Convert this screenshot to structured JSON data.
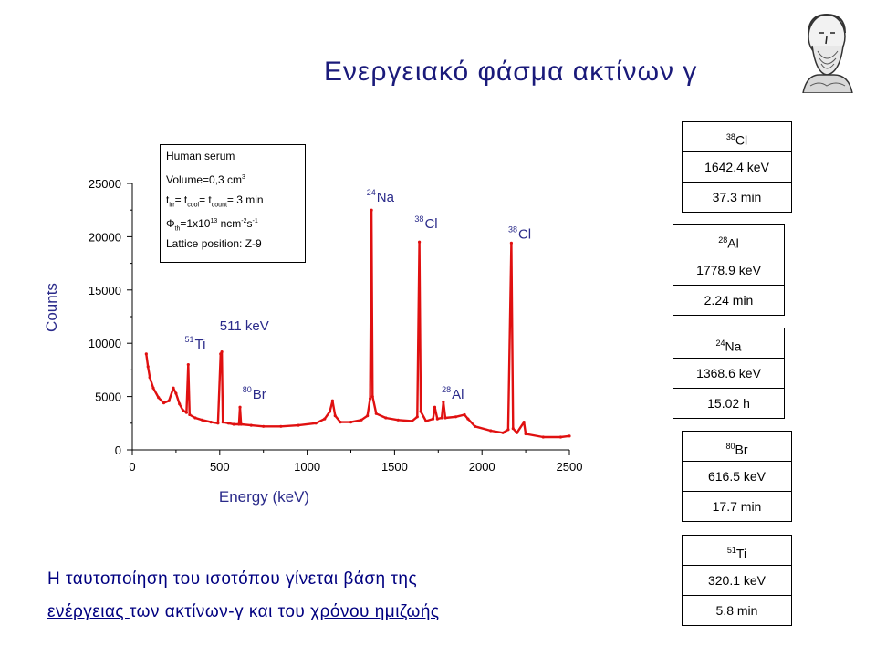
{
  "title": "Ενεργειακό φάσμα ακτίνων γ",
  "info_box": {
    "line1": "Human serum",
    "line2_prefix": "Volume=0,3 cm",
    "line2_sup": "3",
    "line3_a": "t",
    "line3_a_sub": "irr",
    "line3_b": "= t",
    "line3_b_sub": "cool",
    "line3_c": "= t",
    "line3_c_sub": "count",
    "line3_d": "= 3 min",
    "line4_a": "Φ",
    "line4_a_sub": "th",
    "line4_b": "=1x10",
    "line4_b_sup": "13",
    "line4_c": " ncm",
    "line4_c_sup": "-2",
    "line4_d": "s",
    "line4_d_sup": "-1",
    "line5": "Lattice position: Z-9"
  },
  "isotope_boxes": [
    {
      "mass": "38",
      "element": "Cl",
      "energy": "1642.4 keV",
      "half_life": "37.3 min"
    },
    {
      "mass": "28",
      "element": "Al",
      "energy": "1778.9 keV",
      "half_life": "2.24 min"
    },
    {
      "mass": "24",
      "element": "Na",
      "energy": "1368.6 keV",
      "half_life": "15.02 h"
    },
    {
      "mass": "80",
      "element": "Br",
      "energy": "616.5 keV",
      "half_life": "17.7 min"
    },
    {
      "mass": "51",
      "element": "Ti",
      "energy": "320.1 keV",
      "half_life": "5.8 min"
    }
  ],
  "caption": {
    "line1": "Η ταυτοποίηση του ισοτόπου γίνεται βάση της",
    "line2_u1": "ενέργειας ",
    "line2_mid": "των ακτίνων-γ και του ",
    "line2_u2": "χρόνου ημιζωής"
  },
  "chart_data": {
    "type": "line",
    "xlabel": "Energy (keV)",
    "ylabel": "Counts",
    "xlim": [
      0,
      2500
    ],
    "ylim": [
      0,
      25000
    ],
    "xticks": [
      0,
      500,
      1000,
      1500,
      2000,
      2500
    ],
    "yticks": [
      0,
      5000,
      10000,
      15000,
      20000,
      25000
    ],
    "line_color": "#e01010",
    "label_color": "#2a2a8a",
    "series": [
      {
        "values": [
          [
            80,
            9000
          ],
          [
            90,
            7800
          ],
          [
            100,
            6800
          ],
          [
            120,
            5800
          ],
          [
            150,
            4900
          ],
          [
            180,
            4400
          ],
          [
            210,
            4600
          ],
          [
            235,
            5800
          ],
          [
            250,
            5300
          ],
          [
            270,
            4300
          ],
          [
            290,
            3700
          ],
          [
            310,
            3500
          ],
          [
            320,
            8000
          ],
          [
            328,
            3300
          ],
          [
            360,
            3000
          ],
          [
            400,
            2800
          ],
          [
            450,
            2600
          ],
          [
            490,
            2500
          ],
          [
            505,
            9000
          ],
          [
            512,
            9200
          ],
          [
            518,
            2600
          ],
          [
            550,
            2500
          ],
          [
            580,
            2400
          ],
          [
            610,
            2400
          ],
          [
            616,
            4000
          ],
          [
            622,
            2400
          ],
          [
            680,
            2300
          ],
          [
            750,
            2200
          ],
          [
            850,
            2200
          ],
          [
            950,
            2300
          ],
          [
            1050,
            2500
          ],
          [
            1100,
            2900
          ],
          [
            1130,
            3600
          ],
          [
            1145,
            4600
          ],
          [
            1160,
            3200
          ],
          [
            1190,
            2600
          ],
          [
            1250,
            2600
          ],
          [
            1310,
            2800
          ],
          [
            1345,
            3200
          ],
          [
            1360,
            4800
          ],
          [
            1368,
            22500
          ],
          [
            1374,
            5000
          ],
          [
            1395,
            3400
          ],
          [
            1450,
            3000
          ],
          [
            1520,
            2800
          ],
          [
            1600,
            2700
          ],
          [
            1630,
            3100
          ],
          [
            1642,
            19500
          ],
          [
            1650,
            3600
          ],
          [
            1680,
            2700
          ],
          [
            1720,
            2900
          ],
          [
            1730,
            4000
          ],
          [
            1745,
            2900
          ],
          [
            1770,
            3000
          ],
          [
            1779,
            4500
          ],
          [
            1790,
            3000
          ],
          [
            1850,
            3100
          ],
          [
            1900,
            3300
          ],
          [
            1920,
            2900
          ],
          [
            1960,
            2200
          ],
          [
            2050,
            1800
          ],
          [
            2120,
            1600
          ],
          [
            2150,
            1900
          ],
          [
            2168,
            19400
          ],
          [
            2178,
            2000
          ],
          [
            2200,
            1600
          ],
          [
            2240,
            2600
          ],
          [
            2250,
            1500
          ],
          [
            2350,
            1200
          ],
          [
            2450,
            1200
          ],
          [
            2500,
            1300
          ]
        ]
      }
    ],
    "peak_labels": [
      {
        "mass": "51",
        "element": "Ti",
        "x": 300,
        "y": 9500
      },
      {
        "text": "511 keV",
        "x": 500,
        "y": 11200
      },
      {
        "mass": "80",
        "element": "Br",
        "x": 630,
        "y": 4800
      },
      {
        "mass": "24",
        "element": "Na",
        "x": 1340,
        "y": 23300
      },
      {
        "mass": "38",
        "element": "Cl",
        "x": 1615,
        "y": 20800
      },
      {
        "mass": "28",
        "element": "Al",
        "x": 1770,
        "y": 4800
      },
      {
        "mass": "38",
        "element": "Cl",
        "x": 2150,
        "y": 19800
      }
    ]
  }
}
